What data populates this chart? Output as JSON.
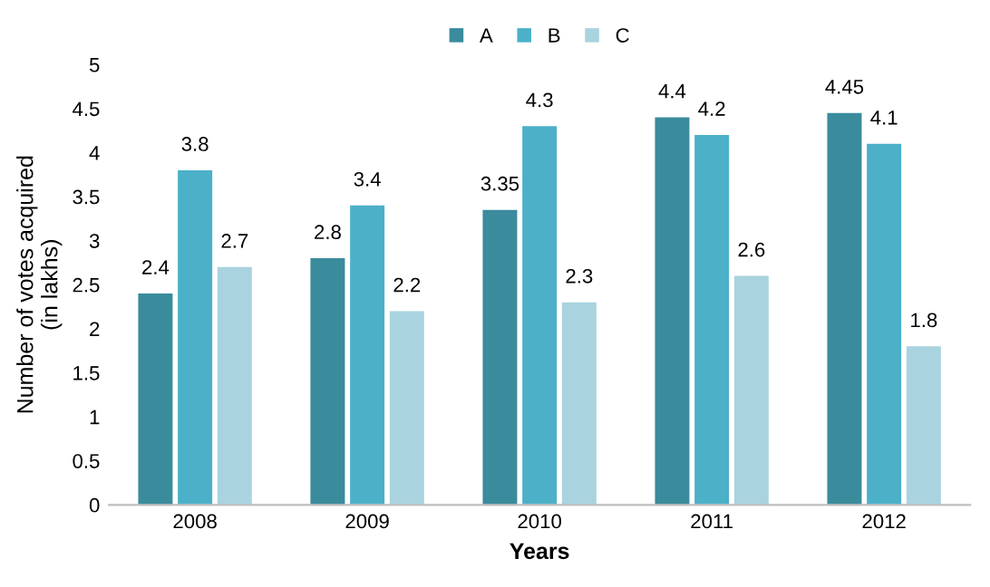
{
  "chart_data": {
    "type": "bar",
    "xlabel": "Years",
    "ylabel": "Number of votes acquired\n(in lakhs)",
    "categories": [
      "2008",
      "2009",
      "2010",
      "2011",
      "2012"
    ],
    "series": [
      {
        "name": "A",
        "color": "#3a8b9c",
        "values": [
          2.4,
          2.8,
          3.35,
          4.4,
          4.45
        ]
      },
      {
        "name": "B",
        "color": "#4cb0c9",
        "values": [
          3.8,
          3.4,
          4.3,
          4.2,
          4.1
        ]
      },
      {
        "name": "C",
        "color": "#a9d3df",
        "values": [
          2.7,
          2.2,
          2.3,
          2.6,
          1.8
        ]
      }
    ],
    "ylim": [
      0,
      5
    ],
    "yticks": [
      0,
      0.5,
      1,
      1.5,
      2,
      2.5,
      3,
      3.5,
      4,
      4.5,
      5
    ],
    "data_labels": true,
    "legend": "top",
    "grid": false
  }
}
